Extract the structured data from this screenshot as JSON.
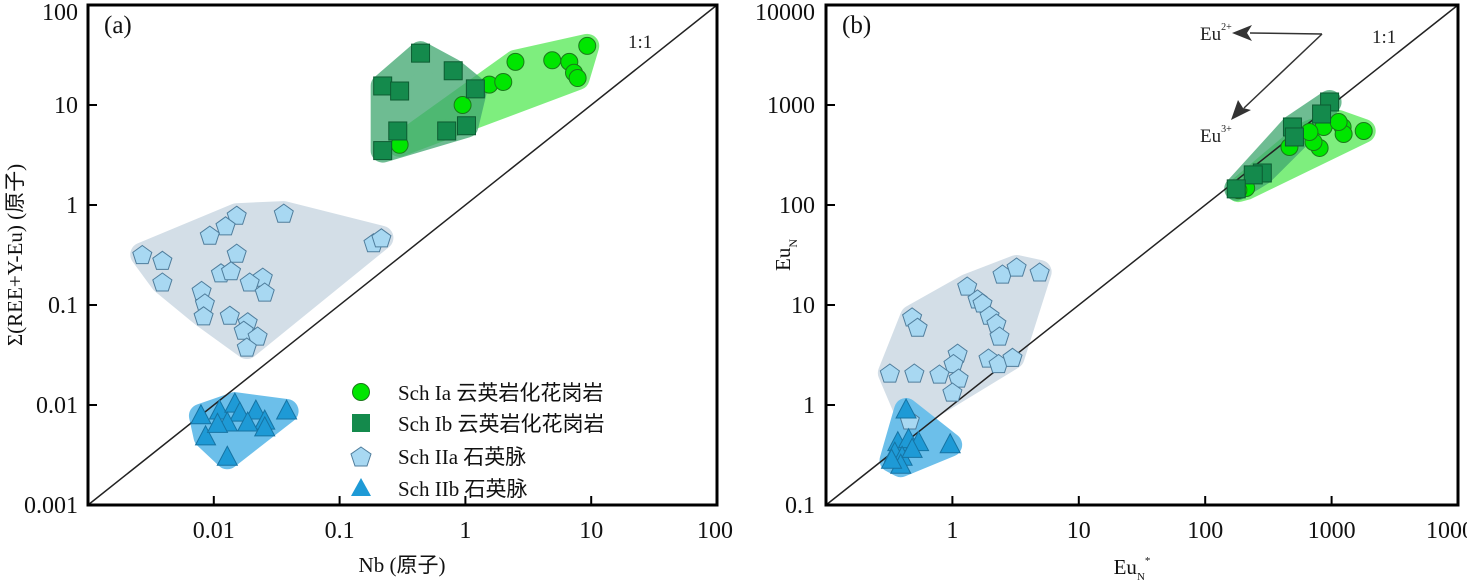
{
  "chart_data": [
    {
      "type": "scatter",
      "panel_label": "(a)",
      "xscale": "log",
      "yscale": "log",
      "xlim": [
        0.001,
        100
      ],
      "ylim": [
        0.001,
        100
      ],
      "xticks": [
        0.01,
        0.1,
        1,
        10,
        100
      ],
      "xtick_labels": [
        "0.01",
        "0.1",
        "1",
        "10",
        "100"
      ],
      "yticks": [
        0.001,
        0.01,
        0.1,
        1,
        10,
        100
      ],
      "ytick_labels": [
        "0.001",
        "0.01",
        "0.1",
        "1",
        "10",
        "100"
      ],
      "xlabel": "Nb (原子)",
      "ylabel": "Σ(REE+Y-Eu) (原子)",
      "reference_line": {
        "label": "1:1",
        "slope": 1
      },
      "legend_position": "bottom-right",
      "series": [
        {
          "name": "Sch IIa 石英脉",
          "marker": "pentagon",
          "color": "#a8d8f2",
          "field_color": "#d3dee7",
          "points": [
            [
              0.0152,
              0.79
            ],
            [
              0.036,
              0.83
            ],
            [
              0.0124,
              0.62
            ],
            [
              0.0093,
              0.5
            ],
            [
              0.0152,
              0.33
            ],
            [
              0.0027,
              0.32
            ],
            [
              0.0039,
              0.28
            ],
            [
              0.0039,
              0.17
            ],
            [
              0.0114,
              0.21
            ],
            [
              0.0137,
              0.22
            ],
            [
              0.0245,
              0.19
            ],
            [
              0.0193,
              0.17
            ],
            [
              0.0254,
              0.135
            ],
            [
              0.008,
              0.14
            ],
            [
              0.0085,
              0.105
            ],
            [
              0.0083,
              0.078
            ],
            [
              0.0134,
              0.079
            ],
            [
              0.0186,
              0.068
            ],
            [
              0.0173,
              0.056
            ],
            [
              0.0223,
              0.049
            ],
            [
              0.0183,
              0.038
            ],
            [
              0.186,
              0.42
            ],
            [
              0.215,
              0.47
            ]
          ]
        },
        {
          "name": "Sch IIb 石英脉",
          "marker": "triangle",
          "color": "#1e9ad6",
          "field_color": "#6cbfea",
          "points": [
            [
              0.0079,
              0.0078
            ],
            [
              0.0111,
              0.0087
            ],
            [
              0.0147,
              0.0102
            ],
            [
              0.0161,
              0.0083
            ],
            [
              0.0216,
              0.0087
            ],
            [
              0.0254,
              0.0069
            ],
            [
              0.0379,
              0.0087
            ],
            [
              0.0086,
              0.0048
            ],
            [
              0.0128,
              0.0066
            ],
            [
              0.0186,
              0.0066
            ],
            [
              0.0254,
              0.0059
            ],
            [
              0.0128,
              0.003
            ],
            [
              0.0107,
              0.0064
            ]
          ]
        },
        {
          "name": "Sch Ia 云英岩化花岗岩",
          "marker": "circle",
          "color": "#00e600",
          "field_color": "#5fea5f",
          "points": [
            [
              2.5,
              27
            ],
            [
              4.9,
              28
            ],
            [
              6.7,
              27
            ],
            [
              7.3,
              21
            ],
            [
              7.8,
              18.6
            ],
            [
              9.3,
              39
            ],
            [
              1.55,
              16
            ],
            [
              2.0,
              17
            ],
            [
              0.95,
              10
            ],
            [
              0.3,
              4.0
            ]
          ]
        },
        {
          "name": "Sch Ib 云英岩化花岗岩",
          "marker": "square",
          "color": "#148a4c",
          "field_color": "#3ea66e",
          "points": [
            [
              0.44,
              33
            ],
            [
              0.8,
              22
            ],
            [
              0.22,
              15.5
            ],
            [
              0.3,
              13.8
            ],
            [
              1.2,
              14.5
            ],
            [
              1.02,
              6.2
            ],
            [
              0.71,
              5.5
            ],
            [
              0.29,
              5.5
            ],
            [
              0.22,
              3.5
            ]
          ]
        }
      ]
    },
    {
      "type": "scatter",
      "panel_label": "(b)",
      "xscale": "log",
      "yscale": "log",
      "xlim": [
        0.1,
        10000
      ],
      "ylim": [
        0.1,
        10000
      ],
      "xticks": [
        1,
        10,
        100,
        1000,
        10000
      ],
      "xtick_labels": [
        "1",
        "10",
        "100",
        "1000",
        "10000"
      ],
      "yticks": [
        0.1,
        1,
        10,
        100,
        1000,
        10000
      ],
      "ytick_labels": [
        "0.1",
        "1",
        "10",
        "100",
        "1000",
        "10000"
      ],
      "xlabel": "Eu",
      "xlabel_sub": "N",
      "xlabel_sup": "*",
      "ylabel": "Eu",
      "ylabel_sub": "N",
      "reference_line": {
        "label": "1:1",
        "slope": 1
      },
      "annotations": [
        {
          "text": "Eu",
          "sup": "2+"
        },
        {
          "text": "Eu",
          "sup": "3+"
        }
      ],
      "series": [
        {
          "name": "Sch IIa 石英脉",
          "marker": "pentagon",
          "color": "#a8d8f2",
          "field_color": "#d3dee7",
          "points": [
            [
              2.49,
              20.4
            ],
            [
              3.22,
              24
            ],
            [
              4.9,
              21.4
            ],
            [
              1.31,
              15.5
            ],
            [
              1.58,
              11.5
            ],
            [
              1.73,
              10.5
            ],
            [
              1.97,
              7.9
            ],
            [
              2.23,
              6.6
            ],
            [
              2.36,
              4.9
            ],
            [
              0.48,
              7.6
            ],
            [
              0.53,
              6.0
            ],
            [
              1.1,
              3.3
            ],
            [
              1.02,
              2.6
            ],
            [
              0.79,
              2.04
            ],
            [
              0.5,
              2.09
            ],
            [
              0.32,
              2.09
            ],
            [
              1.12,
              1.86
            ],
            [
              1.0,
              1.35
            ],
            [
              1.93,
              2.95
            ],
            [
              2.32,
              2.6
            ],
            [
              2.99,
              3.0
            ],
            [
              0.46,
              0.71
            ]
          ]
        },
        {
          "name": "Sch IIb 石英脉",
          "marker": "triangle",
          "color": "#1e9ad6",
          "field_color": "#6cbfea",
          "points": [
            [
              0.43,
              0.89
            ],
            [
              0.96,
              0.4
            ],
            [
              0.37,
              0.42
            ],
            [
              0.45,
              0.45
            ],
            [
              0.54,
              0.42
            ],
            [
              0.35,
              0.33
            ],
            [
              0.4,
              0.3
            ],
            [
              0.39,
              0.25
            ],
            [
              0.48,
              0.36
            ],
            [
              0.33,
              0.28
            ]
          ]
        },
        {
          "name": "Sch Ia 云英岩化花岗岩",
          "marker": "circle",
          "color": "#00e600",
          "field_color": "#5fea5f",
          "points": [
            [
              1795,
              550
            ],
            [
              1222,
              603
            ],
            [
              1245,
              513
            ],
            [
              865,
              603
            ],
            [
              804,
              372
            ],
            [
              719,
              427
            ],
            [
              668,
              537
            ],
            [
              464,
              380
            ],
            [
              1137,
              676
            ],
            [
              211,
              148
            ],
            [
              183,
              141
            ]
          ]
        },
        {
          "name": "Sch Ib 云英岩化花岗岩",
          "marker": "square",
          "color": "#148a4c",
          "field_color": "#3ea66e",
          "points": [
            [
              964,
              1072
            ],
            [
              833,
              813
            ],
            [
              490,
              603
            ],
            [
              508,
              479
            ],
            [
              283,
              209
            ],
            [
              240,
              200
            ],
            [
              176,
              145
            ]
          ]
        }
      ]
    }
  ],
  "legend": [
    {
      "label": "Sch Ia 云英岩化花岗岩",
      "marker": "circle"
    },
    {
      "label": "Sch Ib 云英岩化花岗岩",
      "marker": "square"
    },
    {
      "label": "Sch IIa 石英脉",
      "marker": "pentagon"
    },
    {
      "label": "Sch IIb 石英脉",
      "marker": "triangle"
    }
  ]
}
